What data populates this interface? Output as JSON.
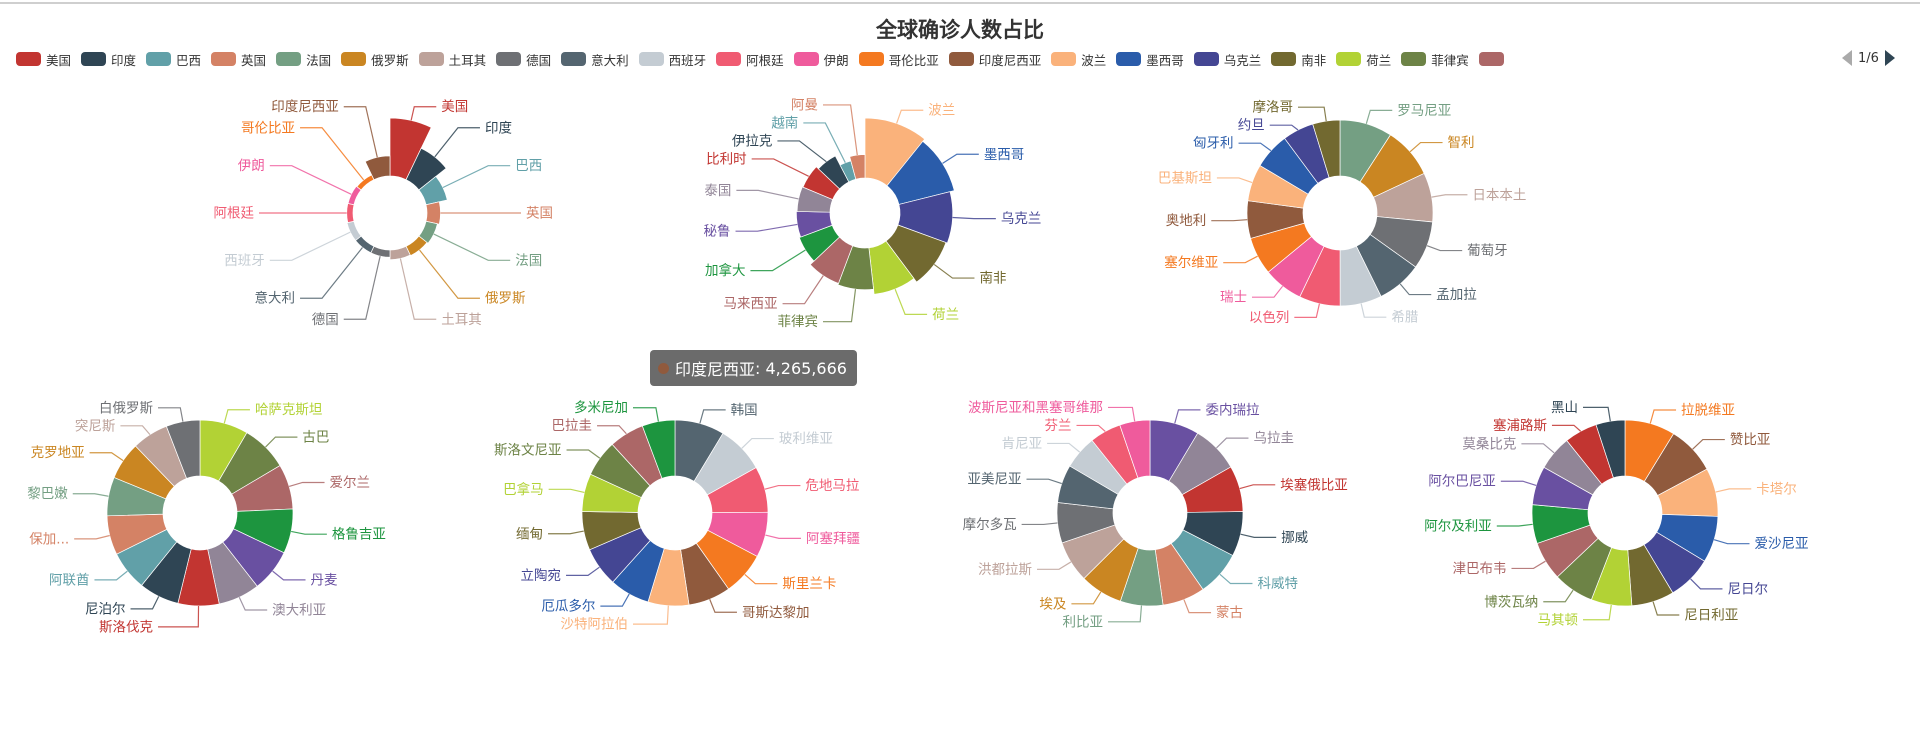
{
  "title": "全球确诊人数占比",
  "palette": [
    "#c23531",
    "#2f4554",
    "#61a0a8",
    "#d48265",
    "#749f83",
    "#ca8622",
    "#bda29a",
    "#6e7074",
    "#546570",
    "#c4ccd3",
    "#f05b72",
    "#ef5b9c",
    "#f47920",
    "#905a3d",
    "#fab27b",
    "#2a5caa",
    "#444693",
    "#726930",
    "#b2d235",
    "#6d8346",
    "#ac6767",
    "#1d953f",
    "#6950a1",
    "#918597"
  ],
  "legend": {
    "items": [
      {
        "name": "美国"
      },
      {
        "name": "印度"
      },
      {
        "name": "巴西"
      },
      {
        "name": "英国"
      },
      {
        "name": "法国"
      },
      {
        "name": "俄罗斯"
      },
      {
        "name": "土耳其"
      },
      {
        "name": "德国"
      },
      {
        "name": "意大利"
      },
      {
        "name": "西班牙"
      },
      {
        "name": "阿根廷"
      },
      {
        "name": "伊朗"
      },
      {
        "name": "哥伦比亚"
      },
      {
        "name": "印度尼西亚"
      },
      {
        "name": "波兰"
      },
      {
        "name": "墨西哥"
      },
      {
        "name": "乌克兰"
      },
      {
        "name": "南非"
      },
      {
        "name": "荷兰"
      },
      {
        "name": "菲律宾"
      }
    ],
    "clipped_item_color": "#ac6767",
    "page": "1/6"
  },
  "tooltip": {
    "name": "印度尼西亚",
    "separator": ": ",
    "value": "4,265,666",
    "color": "#905a3d"
  },
  "chart_data": [
    {
      "type": "pie",
      "rose_type": "area",
      "highlighted": "印度尼西亚",
      "slices": [
        {
          "name": "美国",
          "value": 60000000
        },
        {
          "name": "印度",
          "value": 36000000
        },
        {
          "name": "巴西",
          "value": 22500000
        },
        {
          "name": "英国",
          "value": 14000000
        },
        {
          "name": "法国",
          "value": 12000000
        },
        {
          "name": "俄罗斯",
          "value": 10700000
        },
        {
          "name": "土耳其",
          "value": 10000000
        },
        {
          "name": "德国",
          "value": 7500000
        },
        {
          "name": "意大利",
          "value": 7400000
        },
        {
          "name": "西班牙",
          "value": 7300000
        },
        {
          "name": "阿根廷",
          "value": 6500000
        },
        {
          "name": "伊朗",
          "value": 6200000
        },
        {
          "name": "哥伦比亚",
          "value": 5500000
        },
        {
          "name": "印度尼西亚",
          "value": 4265666
        }
      ]
    },
    {
      "type": "pie",
      "rose_type": "radius",
      "slices": [
        {
          "name": "波兰",
          "value": 4100000
        },
        {
          "name": "墨西哥",
          "value": 3900000
        },
        {
          "name": "乌克兰",
          "value": 3600000
        },
        {
          "name": "南非",
          "value": 3500000
        },
        {
          "name": "荷兰",
          "value": 3200000
        },
        {
          "name": "菲律宾",
          "value": 2850000
        },
        {
          "name": "马来西亚",
          "value": 2750000
        },
        {
          "name": "加拿大",
          "value": 2400000
        },
        {
          "name": "秘鲁",
          "value": 2300000
        },
        {
          "name": "泰国",
          "value": 2250000
        },
        {
          "name": "比利时",
          "value": 2200000
        },
        {
          "name": "伊拉克",
          "value": 2000000
        },
        {
          "name": "越南",
          "value": 1300000
        },
        {
          "name": "阿曼",
          "value": 1600000
        }
      ]
    },
    {
      "type": "pie",
      "slices": [
        {
          "name": "罗马尼亚",
          "value": 1850000
        },
        {
          "name": "智利",
          "value": 1800000
        },
        {
          "name": "日本本土",
          "value": 1730000
        },
        {
          "name": "葡萄牙",
          "value": 1690000
        },
        {
          "name": "孟加拉",
          "value": 1590000
        },
        {
          "name": "希腊",
          "value": 1470000
        },
        {
          "name": "以色列",
          "value": 1450000
        },
        {
          "name": "瑞士",
          "value": 1400000
        },
        {
          "name": "塞尔维亚",
          "value": 1330000
        },
        {
          "name": "奥地利",
          "value": 1320000
        },
        {
          "name": "巴基斯坦",
          "value": 1300000
        },
        {
          "name": "匈牙利",
          "value": 1280000
        },
        {
          "name": "约旦",
          "value": 1100000
        },
        {
          "name": "摩洛哥",
          "value": 960000
        }
      ]
    },
    {
      "type": "pie",
      "slices": [
        {
          "name": "哈萨克斯坦",
          "value": 1000000
        },
        {
          "name": "古巴",
          "value": 960000
        },
        {
          "name": "爱尔兰",
          "value": 930000
        },
        {
          "name": "格鲁吉亚",
          "value": 920000
        },
        {
          "name": "丹麦",
          "value": 880000
        },
        {
          "name": "澳大利亚",
          "value": 860000
        },
        {
          "name": "斯洛伐克",
          "value": 850000
        },
        {
          "name": "尼泊尔",
          "value": 830000
        },
        {
          "name": "阿联酋",
          "value": 820000
        },
        {
          "name": "保加...",
          "value": 810000
        },
        {
          "name": "黎巴嫩",
          "value": 800000
        },
        {
          "name": "克罗地亚",
          "value": 780000
        },
        {
          "name": "突尼斯",
          "value": 750000
        },
        {
          "name": "白俄罗斯",
          "value": 700000
        }
      ]
    },
    {
      "type": "pie",
      "slices": [
        {
          "name": "韩国",
          "value": 680000
        },
        {
          "name": "玻利维亚",
          "value": 650000
        },
        {
          "name": "危地马拉",
          "value": 630000
        },
        {
          "name": "阿塞拜疆",
          "value": 620000
        },
        {
          "name": "斯里兰卡",
          "value": 590000
        },
        {
          "name": "哥斯达黎加",
          "value": 580000
        },
        {
          "name": "沙特阿拉伯",
          "value": 560000
        },
        {
          "name": "厄瓜多尔",
          "value": 550000
        },
        {
          "name": "立陶宛",
          "value": 540000
        },
        {
          "name": "缅甸",
          "value": 530000
        },
        {
          "name": "巴拿马",
          "value": 520000
        },
        {
          "name": "斯洛文尼亚",
          "value": 500000
        },
        {
          "name": "巴拉圭",
          "value": 480000
        },
        {
          "name": "多米尼加",
          "value": 450000
        }
      ]
    },
    {
      "type": "pie",
      "slices": [
        {
          "name": "委内瑞拉",
          "value": 440000
        },
        {
          "name": "乌拉圭",
          "value": 420000
        },
        {
          "name": "埃塞俄比亚",
          "value": 410000
        },
        {
          "name": "挪威",
          "value": 400000
        },
        {
          "name": "科威特",
          "value": 400000
        },
        {
          "name": "蒙古",
          "value": 380000
        },
        {
          "name": "利比亚",
          "value": 380000
        },
        {
          "name": "埃及",
          "value": 380000
        },
        {
          "name": "洪都拉斯",
          "value": 370000
        },
        {
          "name": "摩尔多瓦",
          "value": 360000
        },
        {
          "name": "亚美尼亚",
          "value": 340000
        },
        {
          "name": "肯尼亚",
          "value": 300000
        },
        {
          "name": "芬兰",
          "value": 280000
        },
        {
          "name": "波斯尼亚和黑塞哥维那",
          "value": 270000
        }
      ]
    },
    {
      "type": "pie",
      "slices": [
        {
          "name": "拉脱维亚",
          "value": 260000
        },
        {
          "name": "赞比亚",
          "value": 250000
        },
        {
          "name": "卡塔尔",
          "value": 250000
        },
        {
          "name": "爱沙尼亚",
          "value": 240000
        },
        {
          "name": "尼日尔",
          "value": 230000
        },
        {
          "name": "尼日利亚",
          "value": 220000
        },
        {
          "name": "马其顿",
          "value": 210000
        },
        {
          "name": "博茨瓦纳",
          "value": 210000
        },
        {
          "name": "津巴布韦",
          "value": 200000
        },
        {
          "name": "阿尔及利亚",
          "value": 200000
        },
        {
          "name": "阿尔巴尼亚",
          "value": 200000
        },
        {
          "name": "莫桑比克",
          "value": 180000
        },
        {
          "name": "塞浦路斯",
          "value": 170000
        },
        {
          "name": "黑山",
          "value": 150000
        }
      ]
    }
  ]
}
